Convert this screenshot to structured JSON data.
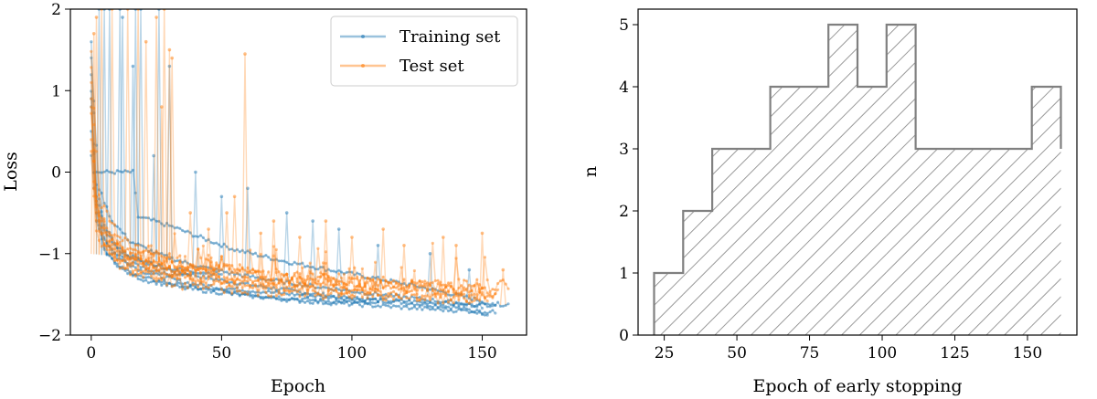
{
  "chart_data": [
    {
      "type": "line",
      "title": "",
      "xlabel": "Epoch",
      "ylabel": "Loss",
      "xlim": [
        -8,
        167
      ],
      "ylim": [
        -2,
        2
      ],
      "xticks": [
        "0",
        "50",
        "100",
        "150"
      ],
      "yticks": [
        "−2",
        "−1",
        "0",
        "1",
        "2"
      ],
      "xtick_values": [
        0,
        50,
        100,
        150
      ],
      "ytick_values": [
        -2,
        -1,
        0,
        1,
        2
      ],
      "legend": {
        "placement": "top-right",
        "entries": [
          "Training set",
          "Test set"
        ]
      },
      "grid": false,
      "series": [
        {
          "name": "Training set",
          "color": "#1f77b4",
          "runs": [
            {
              "x": [
                0,
                2,
                5,
                10,
                15,
                20,
                30,
                45,
                60,
                80,
                100,
                120,
                140,
                152
              ],
              "y": [
                1.6,
                -0.15,
                -0.65,
                -0.92,
                -1.05,
                -1.1,
                -1.2,
                -1.3,
                -1.38,
                -1.47,
                -1.55,
                -1.6,
                -1.66,
                -1.74
              ]
            },
            {
              "x": [
                0,
                1,
                3,
                6,
                10,
                16,
                18,
                24,
                32,
                40,
                55,
                75,
                100,
                125,
                150,
                155
              ],
              "y": [
                1.2,
                0.0,
                0.0,
                0.0,
                0.0,
                0.0,
                -0.55,
                -0.6,
                -0.68,
                -0.78,
                -0.95,
                -1.1,
                -1.25,
                -1.4,
                -1.58,
                -1.65
              ]
            },
            {
              "x": [
                0,
                2,
                5,
                10,
                20,
                35,
                50,
                70,
                90,
                110,
                130,
                145,
                160
              ],
              "y": [
                0.8,
                -0.35,
                -0.8,
                -1.05,
                -1.22,
                -1.35,
                -1.42,
                -1.48,
                -1.53,
                -1.57,
                -1.6,
                -1.63,
                -1.62
              ]
            },
            {
              "x": [
                0,
                2,
                5,
                10,
                20,
                40,
                60,
                80,
                100,
                110
              ],
              "y": [
                0.5,
                -0.5,
                -0.95,
                -1.15,
                -1.3,
                -1.42,
                -1.5,
                -1.56,
                -1.6,
                -1.62
              ]
            },
            {
              "x": [
                0,
                2,
                5,
                10,
                20,
                30,
                40,
                50
              ],
              "y": [
                1.0,
                -0.3,
                -0.7,
                -0.95,
                -1.1,
                -1.18,
                -1.22,
                -1.25
              ]
            },
            {
              "x": [
                0,
                3,
                8,
                15,
                25,
                40,
                55,
                70,
                85,
                100,
                115,
                130,
                145,
                150
              ],
              "y": [
                1.4,
                -0.2,
                -0.6,
                -0.85,
                -1.0,
                -1.15,
                -1.25,
                -1.33,
                -1.4,
                -1.46,
                -1.52,
                -1.57,
                -1.62,
                -1.65
              ]
            },
            {
              "x": [
                0,
                2,
                4,
                8,
                14,
                22,
                30,
                38
              ],
              "y": [
                0.9,
                -0.4,
                -0.75,
                -0.98,
                -1.1,
                -1.2,
                -1.25,
                -1.28
              ]
            },
            {
              "x": [
                0,
                2,
                6,
                12,
                20,
                35,
                55,
                80,
                105,
                130,
                155
              ],
              "y": [
                0.2,
                -0.6,
                -1.0,
                -1.2,
                -1.32,
                -1.42,
                -1.5,
                -1.58,
                -1.63,
                -1.68,
                -1.72
              ]
            }
          ],
          "spikes": [
            [
              3,
              2
            ],
            [
              5,
              2
            ],
            [
              7,
              2
            ],
            [
              11,
              2
            ],
            [
              12,
              1.9
            ],
            [
              16,
              1.3
            ],
            [
              17,
              2
            ],
            [
              19,
              2
            ],
            [
              24,
              0.2
            ],
            [
              26,
              2
            ],
            [
              30,
              1.3
            ],
            [
              40,
              0.0
            ],
            [
              50,
              -0.3
            ],
            [
              60,
              -0.2
            ],
            [
              75,
              -0.5
            ],
            [
              85,
              -0.6
            ],
            [
              95,
              -0.7
            ],
            [
              110,
              -0.9
            ],
            [
              130,
              -1.0
            ],
            [
              145,
              -1.2
            ]
          ]
        },
        {
          "name": "Test set",
          "color": "#ff7f0e",
          "runs": [
            {
              "x": [
                0,
                2,
                5,
                10,
                15,
                20,
                30,
                45,
                60,
                80,
                100,
                120,
                140,
                152
              ],
              "y": [
                1.5,
                -0.3,
                -0.7,
                -0.95,
                -1.05,
                -1.12,
                -1.2,
                -1.3,
                -1.36,
                -1.42,
                -1.47,
                -1.5,
                -1.52,
                -1.55
              ]
            },
            {
              "x": [
                0,
                1,
                3,
                6,
                10,
                16,
                24,
                32,
                40,
                55,
                75,
                100,
                125,
                150,
                156
              ],
              "y": [
                1.1,
                -0.2,
                -0.5,
                -0.7,
                -0.85,
                -0.95,
                -1.05,
                -1.1,
                -1.15,
                -1.22,
                -1.3,
                -1.36,
                -1.42,
                -1.45,
                -1.5
              ]
            },
            {
              "x": [
                0,
                2,
                5,
                10,
                20,
                35,
                50,
                70,
                90,
                110,
                130,
                145,
                160
              ],
              "y": [
                0.7,
                -0.45,
                -0.8,
                -1.0,
                -1.12,
                -1.2,
                -1.26,
                -1.3,
                -1.34,
                -1.36,
                -1.38,
                -1.4,
                -1.38
              ]
            },
            {
              "x": [
                0,
                2,
                5,
                10,
                20,
                40,
                60,
                80,
                100,
                110
              ],
              "y": [
                0.4,
                -0.6,
                -0.9,
                -1.1,
                -1.22,
                -1.3,
                -1.35,
                -1.4,
                -1.42,
                -1.45
              ]
            },
            {
              "x": [
                0,
                2,
                5,
                10,
                20,
                30,
                40,
                50
              ],
              "y": [
                0.9,
                -0.4,
                -0.75,
                -0.95,
                -1.1,
                -1.15,
                -1.2,
                -1.22
              ]
            },
            {
              "x": [
                0,
                3,
                8,
                15,
                25,
                40,
                55,
                70,
                85,
                100,
                115,
                130,
                145,
                150
              ],
              "y": [
                1.3,
                -0.3,
                -0.65,
                -0.88,
                -1.02,
                -1.12,
                -1.2,
                -1.26,
                -1.3,
                -1.34,
                -1.38,
                -1.4,
                -1.42,
                -1.44
              ]
            },
            {
              "x": [
                0,
                2,
                4,
                8,
                14,
                22,
                30,
                38
              ],
              "y": [
                0.8,
                -0.5,
                -0.8,
                -0.98,
                -1.08,
                -1.15,
                -1.2,
                -1.22
              ]
            },
            {
              "x": [
                0,
                2,
                6,
                12,
                20,
                35,
                55,
                80,
                105,
                130,
                155
              ],
              "y": [
                0.1,
                -0.7,
                -1.0,
                -1.18,
                -1.28,
                -1.36,
                -1.42,
                -1.47,
                -1.5,
                -1.53,
                -1.55
              ]
            }
          ],
          "spikes": [
            [
              1,
              1.7
            ],
            [
              2,
              1.9
            ],
            [
              4,
              2
            ],
            [
              8,
              2
            ],
            [
              14,
              2
            ],
            [
              18,
              2
            ],
            [
              21,
              1.6
            ],
            [
              25,
              1.9
            ],
            [
              27,
              0.8
            ],
            [
              28,
              2
            ],
            [
              30,
              1.5
            ],
            [
              31,
              1.4
            ],
            [
              38,
              -0.5
            ],
            [
              45,
              -0.7
            ],
            [
              52,
              -0.5
            ],
            [
              55,
              -0.3
            ],
            [
              59,
              1.45
            ],
            [
              65,
              -0.75
            ],
            [
              70,
              -0.6
            ],
            [
              80,
              -0.8
            ],
            [
              90,
              -0.6
            ],
            [
              100,
              -0.8
            ],
            [
              112,
              -0.7
            ],
            [
              120,
              -0.9
            ],
            [
              135,
              -0.8
            ],
            [
              140,
              -0.9
            ],
            [
              150,
              -0.75
            ],
            [
              158,
              -1.2
            ]
          ]
        }
      ]
    },
    {
      "type": "bar",
      "title": "",
      "xlabel": "Epoch of early stopping",
      "ylabel": "n",
      "xlim": [
        16,
        167
      ],
      "ylim": [
        0,
        5.25
      ],
      "xticks": [
        "25",
        "50",
        "75",
        "100",
        "125",
        "150"
      ],
      "yticks": [
        "0",
        "1",
        "2",
        "3",
        "4",
        "5"
      ],
      "xtick_values": [
        25,
        50,
        75,
        100,
        125,
        150
      ],
      "ytick_values": [
        0,
        1,
        2,
        3,
        4,
        5
      ],
      "grid": false,
      "hatch": "diagonal",
      "color": "#808080",
      "bins": [
        21.5,
        31.5,
        41.5,
        51.5,
        61.5,
        71.5,
        81.5,
        91.5,
        101.5,
        111.5,
        121.5,
        131.5,
        141.5,
        151.5,
        161.5
      ],
      "values": [
        1,
        2,
        3,
        3,
        4,
        4,
        5,
        4,
        5,
        3,
        3,
        3,
        3,
        4,
        3
      ]
    }
  ]
}
